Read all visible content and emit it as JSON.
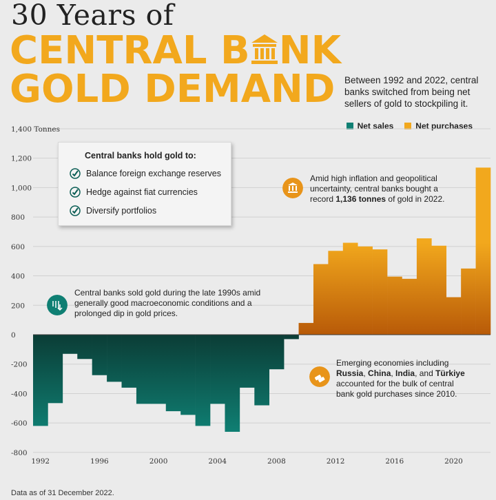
{
  "header": {
    "title_top": "30 Years of",
    "title_line1_a": "CENTRAL B",
    "title_line1_b": "NK",
    "title_line2": "GOLD DEMAND",
    "intro": "Between 1992 and 2022, central banks switched from being net sellers of gold to stockpiling it."
  },
  "legend": {
    "net_sales": "Net sales",
    "net_purchases": "Net purchases"
  },
  "reasons": {
    "title": "Central banks hold gold to:",
    "items": [
      "Balance foreign exchange reserves",
      "Hedge against fiat currencies",
      "Diversify portfolios"
    ]
  },
  "annotations": {
    "sold": "Central banks sold gold during the late 1990s amid generally good macroeconomic conditions and a prolonged dip in gold prices.",
    "record_a": "Amid high inflation and geopolitical uncertainty, central banks bought a record ",
    "record_b": "1,136 tonnes",
    "record_c": " of gold in 2022.",
    "emerging_a": "Emerging economies including ",
    "emerging_b1": "Russia",
    "emerging_sep1": ", ",
    "emerging_b2": "China",
    "emerging_sep2": ", ",
    "emerging_b3": "India",
    "emerging_sep3": ", and ",
    "emerging_b4": "Türkiye",
    "emerging_c": " accounted for the bulk of central bank gold purchases since 2010."
  },
  "footnote": "Data as of 31 December 2022.",
  "colors": {
    "sales": "#0f7f73",
    "purchases": "#f2a81d",
    "sales_dark": "#0b3d36",
    "purchases_dark": "#b85a08",
    "background": "#ebebeb"
  },
  "chart_data": {
    "type": "bar",
    "title": "30 Years of CENTRAL BANK GOLD DEMAND",
    "ylabel": "Tonnes",
    "ylim": [
      -800,
      1400
    ],
    "yticks": [
      -800,
      -600,
      -400,
      -200,
      0,
      200,
      400,
      600,
      800,
      1000,
      1200,
      1400
    ],
    "ytick_labels": [
      "-800",
      "-600",
      "-400",
      "-200",
      "0",
      "200",
      "400",
      "600",
      "800",
      "1,000",
      "1,200",
      "1,400 Tonnes"
    ],
    "xticks": [
      1992,
      1996,
      2000,
      2004,
      2008,
      2012,
      2016,
      2020
    ],
    "categories": [
      1992,
      1993,
      1994,
      1995,
      1996,
      1997,
      1998,
      1999,
      2000,
      2001,
      2002,
      2003,
      2004,
      2005,
      2006,
      2007,
      2008,
      2009,
      2010,
      2011,
      2012,
      2013,
      2014,
      2015,
      2016,
      2017,
      2018,
      2019,
      2020,
      2021,
      2022
    ],
    "values": [
      -620,
      -465,
      -130,
      -165,
      -275,
      -320,
      -360,
      -470,
      -470,
      -520,
      -545,
      -620,
      -470,
      -660,
      -360,
      -480,
      -235,
      -30,
      80,
      480,
      570,
      625,
      600,
      580,
      395,
      380,
      655,
      605,
      255,
      450,
      1136
    ],
    "legend_position": "top-right",
    "grid": true
  }
}
